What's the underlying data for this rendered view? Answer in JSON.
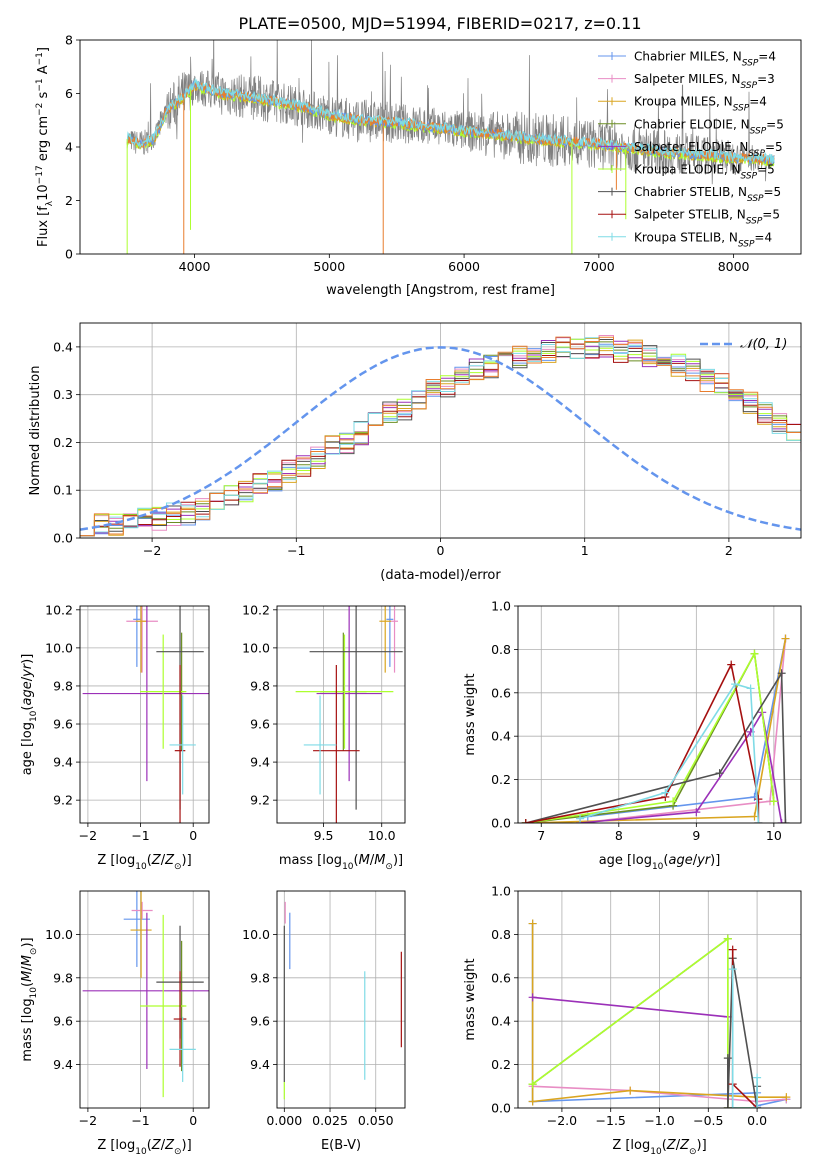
{
  "figure_title": "PLATE=0500, MJD=51994, FIBERID=0217, z=0.11",
  "colors": {
    "Chabrier MILES": "#6495ED",
    "Salpeter MILES": "#E88DC4",
    "Kroupa MILES": "#DAA520",
    "Chabrier ELODIE": "#6B8E23",
    "Salpeter ELODIE": "#9B30B8",
    "Kroupa ELODIE": "#ADFF2F",
    "Chabrier STELIB": "#505050",
    "Salpeter STELIB": "#A51010",
    "Kroupa STELIB": "#7FDBE6",
    "data_spectrum": "#808080",
    "gaussian": "#6495ED",
    "highlight_orange": "#E87D2E"
  },
  "chart_data": [
    {
      "id": "spectrum",
      "type": "line",
      "title": "PLATE=0500, MJD=51994, FIBERID=0217, z=0.11",
      "xlabel": "wavelength [Angstrom, rest frame]",
      "ylabel": "Flux [fλ10⁻¹⁷ erg cm⁻² s⁻¹ A⁻¹]",
      "xlim": [
        3150,
        8500
      ],
      "ylim": [
        0,
        8
      ],
      "xticks": [
        4000,
        5000,
        6000,
        7000,
        8000
      ],
      "yticks": [
        0,
        2,
        4,
        6,
        8
      ],
      "grid": false,
      "legend_position": "top-right",
      "legend": [
        {
          "label": "Chabrier MILES, N",
          "sub": "SSP",
          "suffix": "=4",
          "color": "#6495ED"
        },
        {
          "label": "Salpeter MILES, N",
          "sub": "SSP",
          "suffix": "=3",
          "color": "#E88DC4"
        },
        {
          "label": "Kroupa MILES, N",
          "sub": "SSP",
          "suffix": "=4",
          "color": "#DAA520"
        },
        {
          "label": "Chabrier ELODIE, N",
          "sub": "SSP",
          "suffix": "=5",
          "color": "#6B8E23"
        },
        {
          "label": "Salpeter ELODIE, N",
          "sub": "SSP",
          "suffix": "=5",
          "color": "#9B30B8"
        },
        {
          "label": "Kroupa ELODIE, N",
          "sub": "SSP",
          "suffix": "=5",
          "color": "#ADFF2F"
        },
        {
          "label": "Chabrier STELIB, N",
          "sub": "SSP",
          "suffix": "=5",
          "color": "#505050"
        },
        {
          "label": "Salpeter STELIB, N",
          "sub": "SSP",
          "suffix": "=5",
          "color": "#A51010"
        },
        {
          "label": "Kroupa STELIB, N",
          "sub": "SSP",
          "suffix": "=4",
          "color": "#7FDBE6"
        }
      ],
      "model_continuum": [
        [
          3500,
          4.3
        ],
        [
          3600,
          4.1
        ],
        [
          3700,
          4.3
        ],
        [
          3800,
          5.4
        ],
        [
          3900,
          5.8
        ],
        [
          4000,
          6.3
        ],
        [
          4200,
          6.0
        ],
        [
          4500,
          5.8
        ],
        [
          4800,
          5.5
        ],
        [
          5000,
          5.2
        ],
        [
          5200,
          5.0
        ],
        [
          5500,
          4.9
        ],
        [
          6000,
          4.6
        ],
        [
          6500,
          4.3
        ],
        [
          7000,
          4.1
        ],
        [
          7500,
          3.8
        ],
        [
          8000,
          3.6
        ],
        [
          8300,
          3.5
        ]
      ],
      "data_envelope": [
        [
          3500,
          4.4
        ],
        [
          3700,
          4.4
        ],
        [
          3800,
          5.9
        ],
        [
          3900,
          6.6
        ],
        [
          4000,
          6.7
        ],
        [
          4500,
          6.4
        ],
        [
          5000,
          5.7
        ],
        [
          6000,
          5.1
        ],
        [
          6500,
          5.1
        ],
        [
          7000,
          4.8
        ],
        [
          8000,
          4.0
        ],
        [
          8300,
          3.5
        ]
      ],
      "dips": [
        [
          3500,
          0.0
        ],
        [
          3920,
          0.0
        ],
        [
          3970,
          0.9
        ],
        [
          5400,
          0.0
        ],
        [
          6800,
          0.0
        ],
        [
          7130,
          2.4
        ],
        [
          7200,
          1.3
        ]
      ]
    },
    {
      "id": "residuals",
      "type": "histogram",
      "xlabel": "(data-model)/error",
      "ylabel": "Normed distribution",
      "xlim": [
        -2.5,
        2.5
      ],
      "ylim": [
        0,
        0.45
      ],
      "xticks": [
        -2,
        -1,
        0,
        1,
        2
      ],
      "yticks": [
        0.0,
        0.1,
        0.2,
        0.3,
        0.4
      ],
      "grid": true,
      "legend": [
        {
          "label": "𝒩(0, 1)",
          "color": "#6495ED",
          "style": "dashed"
        }
      ],
      "legend_position": "top-right",
      "bin_width": 0.1,
      "bin_start": -2.5,
      "envelope": [
        0.02,
        0.03,
        0.03,
        0.04,
        0.04,
        0.04,
        0.05,
        0.05,
        0.06,
        0.07,
        0.09,
        0.1,
        0.11,
        0.12,
        0.14,
        0.15,
        0.17,
        0.19,
        0.2,
        0.22,
        0.24,
        0.26,
        0.27,
        0.29,
        0.31,
        0.32,
        0.34,
        0.35,
        0.36,
        0.37,
        0.38,
        0.39,
        0.39,
        0.4,
        0.4,
        0.4,
        0.4,
        0.39,
        0.39,
        0.38,
        0.37,
        0.36,
        0.35,
        0.33,
        0.32,
        0.3,
        0.28,
        0.26,
        0.24,
        0.22,
        0.2
      ]
    },
    {
      "id": "age_vs_Z",
      "type": "errorbar",
      "xlabel": "Z [log₁₀(Z/Z⊙)]",
      "ylabel": "age  [log₁₀(age/yr)]",
      "xlim": [
        -2.15,
        0.3
      ],
      "ylim": [
        9.08,
        10.22
      ],
      "xticks": [
        -2,
        -1,
        0
      ],
      "yticks": [
        9.2,
        9.4,
        9.6,
        9.8,
        10.0,
        10.2
      ],
      "grid": true,
      "points": [
        {
          "series": "Chabrier MILES",
          "x": -1.07,
          "y": 10.15,
          "xerr": 0.07,
          "yerr": 0.25
        },
        {
          "series": "Salpeter MILES",
          "x": -0.97,
          "y": 10.14,
          "xerr": 0.3,
          "yerr": 0.27
        },
        {
          "series": "Kroupa MILES",
          "x": -0.99,
          "y": 10.14,
          "xerr": 0.1,
          "yerr": 0.27
        },
        {
          "series": "Chabrier ELODIE",
          "x": -0.22,
          "y": 9.77,
          "xerr": 0.05,
          "yerr": 0.31
        },
        {
          "series": "Salpeter ELODIE",
          "x": -0.88,
          "y": 9.76,
          "xerr": 1.22,
          "yerr": 0.46
        },
        {
          "series": "Kroupa ELODIE",
          "x": -0.57,
          "y": 9.77,
          "xerr": 0.44,
          "yerr": 0.3
        },
        {
          "series": "Chabrier STELIB",
          "x": -0.25,
          "y": 9.98,
          "xerr": 0.45,
          "yerr": 0.83
        },
        {
          "series": "Salpeter STELIB",
          "x": -0.25,
          "y": 9.46,
          "xerr": 0.1,
          "yerr": 0.45
        },
        {
          "series": "Kroupa STELIB",
          "x": -0.2,
          "y": 9.49,
          "xerr": 0.25,
          "yerr": 0.26
        }
      ]
    },
    {
      "id": "age_vs_mass",
      "type": "errorbar",
      "xlabel": "mass [log₁₀(M/M⊙)]",
      "ylabel": "",
      "xlim": [
        9.1,
        10.2
      ],
      "ylim": [
        9.08,
        10.22
      ],
      "xticks": [
        9.5,
        10.0
      ],
      "yticks": [
        9.2,
        9.4,
        9.6,
        9.8,
        10.0,
        10.2
      ],
      "grid": true,
      "points": [
        {
          "series": "Chabrier MILES",
          "x": 10.07,
          "y": 10.15,
          "xerr": 0.03,
          "yerr": 0.25
        },
        {
          "series": "Salpeter MILES",
          "x": 10.11,
          "y": 10.14,
          "xerr": 0.03,
          "yerr": 0.27
        },
        {
          "series": "Kroupa MILES",
          "x": 10.03,
          "y": 10.14,
          "xerr": 0.05,
          "yerr": 0.27
        },
        {
          "series": "Chabrier ELODIE",
          "x": 9.67,
          "y": 9.77,
          "xerr": 0.2,
          "yerr": 0.31
        },
        {
          "series": "Salpeter ELODIE",
          "x": 9.72,
          "y": 9.76,
          "xerr": 0.28,
          "yerr": 0.46
        },
        {
          "series": "Kroupa ELODIE",
          "x": 9.68,
          "y": 9.77,
          "xerr": 0.42,
          "yerr": 0.3
        },
        {
          "series": "Chabrier STELIB",
          "x": 9.78,
          "y": 9.98,
          "xerr": 0.4,
          "yerr": 0.83
        },
        {
          "series": "Salpeter STELIB",
          "x": 9.61,
          "y": 9.46,
          "xerr": 0.2,
          "yerr": 0.45
        },
        {
          "series": "Kroupa STELIB",
          "x": 9.47,
          "y": 9.49,
          "xerr": 0.14,
          "yerr": 0.26
        }
      ]
    },
    {
      "id": "mass_weight_vs_age",
      "type": "line",
      "xlabel": "age  [log₁₀(age/yr)]",
      "ylabel": "mass weight",
      "xlim": [
        6.7,
        10.35
      ],
      "ylim": [
        0,
        1
      ],
      "xticks": [
        7,
        8,
        9,
        10
      ],
      "yticks": [
        0.0,
        0.2,
        0.4,
        0.6,
        0.8,
        1.0
      ],
      "grid": true,
      "series": [
        {
          "name": "Chabrier MILES",
          "x": [
            7.6,
            9.75,
            10.15
          ],
          "y": [
            0.03,
            0.12,
            0.85
          ]
        },
        {
          "name": "Salpeter MILES",
          "x": [
            7.5,
            9.95,
            10.15
          ],
          "y": [
            0.0,
            0.1,
            0.85
          ]
        },
        {
          "name": "Kroupa MILES",
          "x": [
            6.8,
            9.75,
            10.15
          ],
          "y": [
            0.0,
            0.03,
            0.85
          ]
        },
        {
          "name": "Chabrier ELODIE",
          "x": [
            6.8,
            8.7,
            9.75,
            10.0
          ],
          "y": [
            0.0,
            0.08,
            0.78,
            0.1
          ]
        },
        {
          "name": "Salpeter ELODIE",
          "x": [
            7.5,
            9.0,
            9.7,
            9.85,
            10.1
          ],
          "y": [
            0.0,
            0.05,
            0.42,
            0.51,
            0.0
          ]
        },
        {
          "name": "Kroupa ELODIE",
          "x": [
            6.8,
            8.7,
            9.75,
            10.0
          ],
          "y": [
            0.0,
            0.1,
            0.78,
            0.1
          ]
        },
        {
          "name": "Chabrier STELIB",
          "x": [
            6.8,
            9.3,
            10.1,
            10.15
          ],
          "y": [
            0.0,
            0.23,
            0.69,
            0.0
          ]
        },
        {
          "name": "Salpeter STELIB",
          "x": [
            6.8,
            8.6,
            9.45,
            9.8,
            9.8
          ],
          "y": [
            0.0,
            0.12,
            0.73,
            0.11,
            0.0
          ]
        },
        {
          "name": "Kroupa STELIB",
          "x": [
            7.5,
            8.6,
            9.5,
            9.7,
            9.8
          ],
          "y": [
            0.02,
            0.14,
            0.64,
            0.62,
            0.0
          ]
        }
      ]
    },
    {
      "id": "mass_vs_Z",
      "type": "errorbar",
      "xlabel": "Z [log₁₀(Z/Z⊙)]",
      "ylabel": "mass [log₁₀(M/M⊙)]",
      "xlim": [
        -2.15,
        0.3
      ],
      "ylim": [
        9.2,
        10.2
      ],
      "xticks": [
        -2,
        -1,
        0
      ],
      "yticks": [
        9.4,
        9.6,
        9.8,
        10.0
      ],
      "grid": true,
      "points": [
        {
          "series": "Chabrier MILES",
          "x": -1.07,
          "y": 10.07,
          "xerr": 0.25,
          "yerr": 0.22
        },
        {
          "series": "Salpeter MILES",
          "x": -0.97,
          "y": 10.11,
          "xerr": 0.2,
          "yerr": 0.04
        },
        {
          "series": "Kroupa MILES",
          "x": -0.99,
          "y": 10.02,
          "xerr": 0.2,
          "yerr": 0.22
        },
        {
          "series": "Chabrier ELODIE",
          "x": -0.22,
          "y": 9.67,
          "xerr": 0.05,
          "yerr": 0.3
        },
        {
          "series": "Salpeter ELODIE",
          "x": -0.88,
          "y": 9.74,
          "xerr": 1.22,
          "yerr": 0.36
        },
        {
          "series": "Kroupa ELODIE",
          "x": -0.57,
          "y": 9.67,
          "xerr": 0.44,
          "yerr": 0.42
        },
        {
          "series": "Chabrier STELIB",
          "x": -0.25,
          "y": 9.78,
          "xerr": 0.45,
          "yerr": 0.26
        },
        {
          "series": "Salpeter STELIB",
          "x": -0.25,
          "y": 9.61,
          "xerr": 0.12,
          "yerr": 0.22
        },
        {
          "series": "Kroupa STELIB",
          "x": -0.2,
          "y": 9.47,
          "xerr": 0.25,
          "yerr": 0.15
        }
      ]
    },
    {
      "id": "mass_vs_ebv",
      "type": "errorbar",
      "xlabel": "E(B-V)",
      "ylabel": "",
      "xlim": [
        -0.004,
        0.066
      ],
      "ylim": [
        9.2,
        10.2
      ],
      "xticks": [
        0.0,
        0.025,
        0.05
      ],
      "xticklabels": [
        "0.000",
        "0.025",
        "0.050"
      ],
      "yticks": [
        9.4,
        9.6,
        9.8,
        10.0
      ],
      "grid": true,
      "points": [
        {
          "series": "Kroupa ELODIE",
          "x": 0.0,
          "y": 9.28,
          "xerr": 0.0,
          "yerr": 0.04
        },
        {
          "series": "Chabrier STELIB",
          "x": 0.0,
          "y": 9.68,
          "xerr": 0.0,
          "yerr": 0.36
        },
        {
          "series": "Salpeter MILES",
          "x": 0.0005,
          "y": 10.1,
          "xerr": 0.0,
          "yerr": 0.05
        },
        {
          "series": "Chabrier MILES",
          "x": 0.003,
          "y": 9.97,
          "xerr": 0.0,
          "yerr": 0.13
        },
        {
          "series": "Kroupa STELIB",
          "x": 0.044,
          "y": 9.58,
          "xerr": 0.0,
          "yerr": 0.25
        },
        {
          "series": "Salpeter STELIB",
          "x": 0.064,
          "y": 9.7,
          "xerr": 0.0,
          "yerr": 0.22
        }
      ]
    },
    {
      "id": "mass_weight_vs_Z",
      "type": "line",
      "xlabel": "Z [log₁₀(Z/Z⊙)]",
      "ylabel": "mass weight",
      "xlim": [
        -2.45,
        0.45
      ],
      "ylim": [
        0,
        1
      ],
      "xticks": [
        -2.0,
        -1.5,
        -1.0,
        -0.5,
        0.0
      ],
      "xticklabels": [
        "−2.0",
        "−1.5",
        "−1.0",
        "−0.5",
        "0.0"
      ],
      "yticks": [
        0.0,
        0.2,
        0.4,
        0.6,
        0.8,
        1.0
      ],
      "grid": true,
      "series": [
        {
          "name": "Chabrier MILES",
          "x": [
            -2.3,
            -2.3,
            0.0,
            0.0,
            0.3
          ],
          "y": [
            0.85,
            0.03,
            0.07,
            0.01,
            0.04
          ]
        },
        {
          "name": "Salpeter MILES",
          "x": [
            -2.3,
            -1.3,
            0.0,
            0.3
          ],
          "y": [
            0.1,
            0.08,
            0.03,
            0.04
          ]
        },
        {
          "name": "Kroupa MILES",
          "x": [
            -2.3,
            -2.3,
            -1.3,
            0.0,
            0.3
          ],
          "y": [
            0.85,
            0.03,
            0.08,
            0.05,
            0.05
          ]
        },
        {
          "name": "Chabrier ELODIE",
          "x": [
            -2.3,
            -0.3,
            -0.3,
            0.0
          ],
          "y": [
            0.11,
            0.78,
            0.0,
            0.0
          ]
        },
        {
          "name": "Salpeter ELODIE",
          "x": [
            -2.3,
            -0.3,
            -0.3,
            0.0
          ],
          "y": [
            0.51,
            0.42,
            0.0,
            0.0
          ]
        },
        {
          "name": "Kroupa ELODIE",
          "x": [
            -2.3,
            -0.3,
            -0.3,
            0.0
          ],
          "y": [
            0.11,
            0.78,
            0.0,
            0.0
          ]
        },
        {
          "name": "Chabrier STELIB",
          "x": [
            -0.3,
            -0.3,
            -0.25,
            0.0,
            0.0
          ],
          "y": [
            0.23,
            0.0,
            0.69,
            0.0,
            0.1
          ]
        },
        {
          "name": "Salpeter STELIB",
          "x": [
            -0.25,
            -0.25,
            -0.25,
            0.0
          ],
          "y": [
            0.73,
            0.0,
            0.11,
            0.0
          ]
        },
        {
          "name": "Kroupa STELIB",
          "x": [
            -0.25,
            -0.25,
            0.0,
            0.0
          ],
          "y": [
            0.64,
            0.0,
            0.0,
            0.14
          ]
        }
      ]
    }
  ]
}
